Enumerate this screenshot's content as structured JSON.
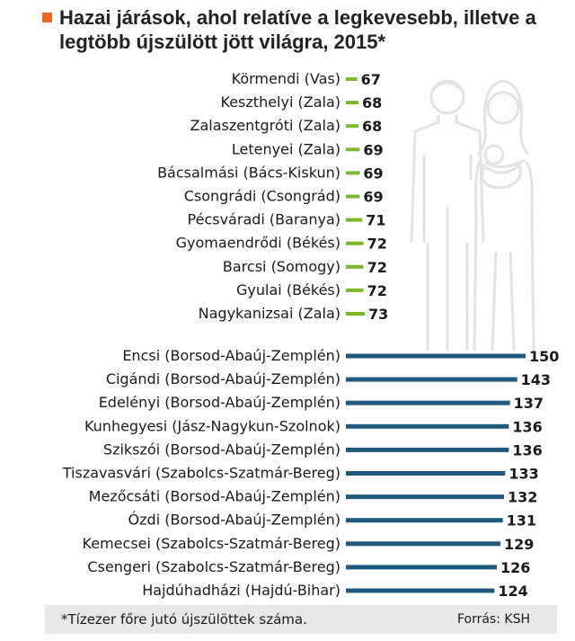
{
  "title": "Hazai járások, ahol relatíve a legkevesebb, illetve a legtöbb újszülött jött világra, 2015*",
  "footnote": "*Tízezer főre jutó újszülöttek száma.",
  "source": "Forrás: KSH",
  "colors": {
    "accent": "#f26522",
    "low": "#7ab82c",
    "high": "#1f5a7d"
  },
  "chart_data": [
    {
      "type": "bar",
      "orientation": "horizontal",
      "color": "#7ab82c",
      "categories": [
        "Körmendi (Vas)",
        "Keszthelyi (Zala)",
        "Zalaszentgróti (Zala)",
        "Letenyei (Zala)",
        "Bácsalmási (Bács-Kiskun)",
        "Csongrádi (Csongrád)",
        "Pécsváradi (Baranya)",
        "Gyomaendrődi (Békés)",
        "Barcsi (Somogy)",
        "Gyulai (Békés)",
        "Nagykanizsai (Zala)"
      ],
      "values": [
        67,
        68,
        68,
        69,
        69,
        69,
        71,
        72,
        72,
        72,
        73
      ]
    },
    {
      "type": "bar",
      "orientation": "horizontal",
      "color": "#1f5a7d",
      "categories": [
        "Encsi (Borsod-Abaúj-Zemplén)",
        "Cigándi (Borsod-Abaúj-Zemplén)",
        "Edelényi (Borsod-Abaúj-Zemplén)",
        "Kunhegyesi (Jász-Nagykun-Szolnok)",
        "Szikszói (Borsod-Abaúj-Zemplén)",
        "Tiszavasvári (Szabolcs-Szatmár-Bereg)",
        "Mezőcsáti (Borsod-Abaúj-Zemplén)",
        "Ózdi (Borsod-Abaúj-Zemplén)",
        "Kemecsei (Szabolcs-Szatmár-Bereg)",
        "Csengeri (Szabolcs-Szatmár-Bereg)",
        "Hajdúhadházi (Hajdú-Bihar)"
      ],
      "values": [
        150,
        143,
        137,
        136,
        136,
        133,
        132,
        131,
        129,
        126,
        124
      ]
    }
  ]
}
